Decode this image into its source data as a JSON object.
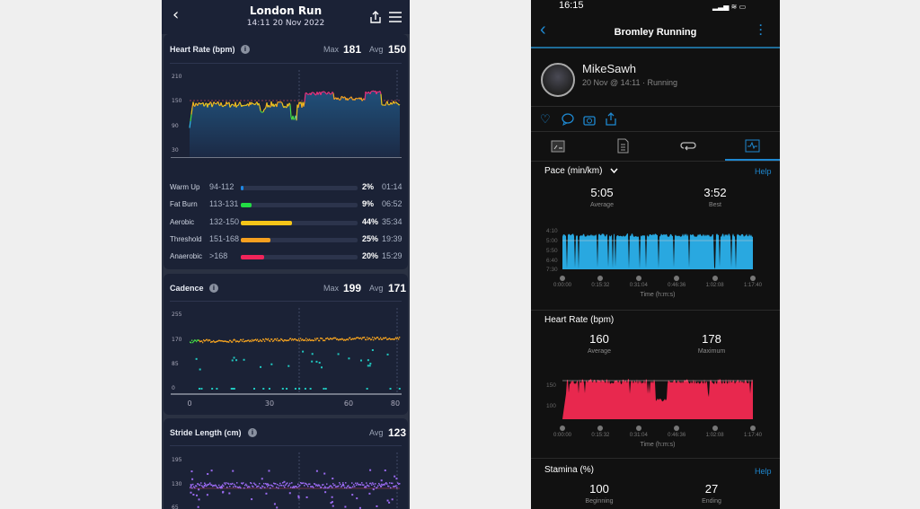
{
  "left": {
    "header": {
      "title": "London Run",
      "date": "14:11 20 Nov 2022"
    },
    "heart_rate": {
      "title": "Heart Rate (bpm)",
      "max_label": "Max",
      "max": "181",
      "avg_label": "Avg",
      "avg": "150",
      "y_ticks": [
        "210",
        "150",
        "90",
        "30"
      ],
      "x_ticks": [
        "0",
        "30",
        "60",
        "80"
      ],
      "zones": [
        {
          "name": "Warm Up",
          "range": "94-112",
          "pct": "2%",
          "time": "01:14",
          "fill": 2,
          "color": "#1e88e5"
        },
        {
          "name": "Fat Burn",
          "range": "113-131",
          "pct": "9%",
          "time": "06:52",
          "fill": 9,
          "color": "#22dd44"
        },
        {
          "name": "Aerobic",
          "range": "132-150",
          "pct": "44%",
          "time": "35:34",
          "fill": 44,
          "color": "#f5c518"
        },
        {
          "name": "Threshold",
          "range": "151-168",
          "pct": "25%",
          "time": "19:39",
          "fill": 25,
          "color": "#f5a020"
        },
        {
          "name": "Anaerobic",
          "range": ">168",
          "pct": "20%",
          "time": "15:29",
          "fill": 20,
          "color": "#f0245a"
        }
      ]
    },
    "cadence": {
      "title": "Cadence",
      "max_label": "Max",
      "max": "199",
      "avg_label": "Avg",
      "avg": "171",
      "y_ticks": [
        "255",
        "170",
        "85",
        "0"
      ],
      "x_ticks": [
        "0",
        "30",
        "60",
        "80"
      ]
    },
    "stride": {
      "title": "Stride Length (cm)",
      "avg_label": "Avg",
      "avg": "123",
      "y_ticks": [
        "195",
        "130",
        "65"
      ]
    }
  },
  "right": {
    "status": {
      "time": "16:15"
    },
    "nav": {
      "title": "Bromley Running"
    },
    "profile": {
      "name": "MikeSawh",
      "subtitle": "20 Nov @ 14:11 · Running"
    },
    "pace": {
      "title": "Pace (min/km)",
      "help": "Help",
      "avg": "5:05",
      "avg_label": "Average",
      "best": "3:52",
      "best_label": "Best",
      "y_ticks": [
        "4:10",
        "5:00",
        "5:50",
        "6:40",
        "7:30"
      ],
      "x_ticks": [
        "0:00:00",
        "0:15:32",
        "0:31:04",
        "0:46:36",
        "1:02:08",
        "1:17:40"
      ],
      "x_label": "Time (h:m:s)",
      "color": "#29a8e0"
    },
    "hr": {
      "title": "Heart Rate (bpm)",
      "avg": "160",
      "avg_label": "Average",
      "max": "178",
      "max_label": "Maximum",
      "y_ticks": [
        "150",
        "100"
      ],
      "x_ticks": [
        "0:00:00",
        "0:15:32",
        "0:31:04",
        "0:46:36",
        "1:02:08",
        "1:17:40"
      ],
      "x_label": "Time (h:m:s)",
      "color": "#e8284e"
    },
    "stamina": {
      "title": "Stamina (%)",
      "help": "Help",
      "begin": "100",
      "begin_label": "Beginning",
      "end": "27",
      "end_label": "Ending"
    },
    "accent": "#1e88d0"
  }
}
